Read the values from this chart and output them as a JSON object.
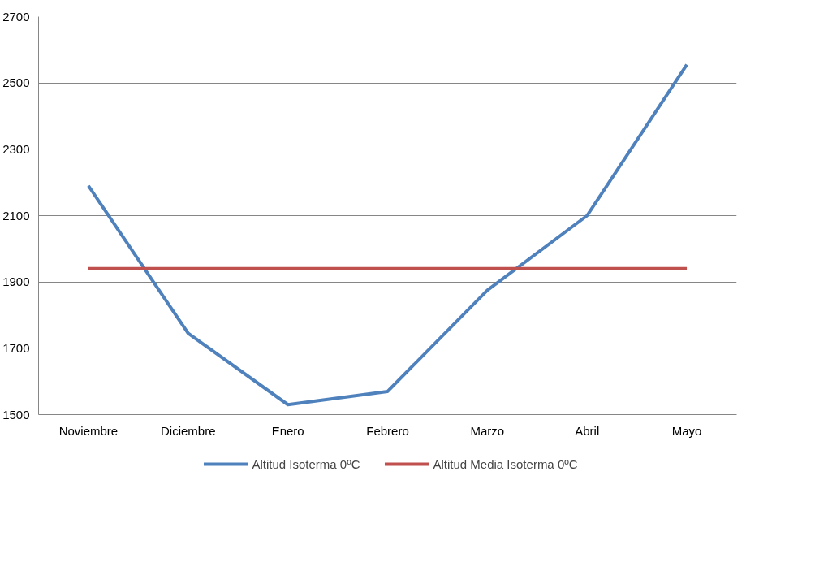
{
  "chart_data": {
    "type": "line",
    "categories": [
      "Noviembre",
      "Diciembre",
      "Enero",
      "Febrero",
      "Marzo",
      "Abril",
      "Mayo"
    ],
    "series": [
      {
        "name": "Altitud Isoterma 0ºC",
        "color": "#4f81bd",
        "values": [
          2190,
          1745,
          1530,
          1570,
          1875,
          2100,
          2555
        ]
      },
      {
        "name": "Altitud Media Isoterma 0ºC",
        "color": "#c0504d",
        "values": [
          1940,
          1940,
          1940,
          1940,
          1940,
          1940,
          1940
        ]
      }
    ],
    "ylim": [
      1500,
      2700
    ],
    "yticks": [
      1500,
      1700,
      1900,
      2100,
      2300,
      2500,
      2700
    ],
    "grid": "y",
    "legend": "bottom",
    "marker": "none",
    "line_style": "solid"
  }
}
